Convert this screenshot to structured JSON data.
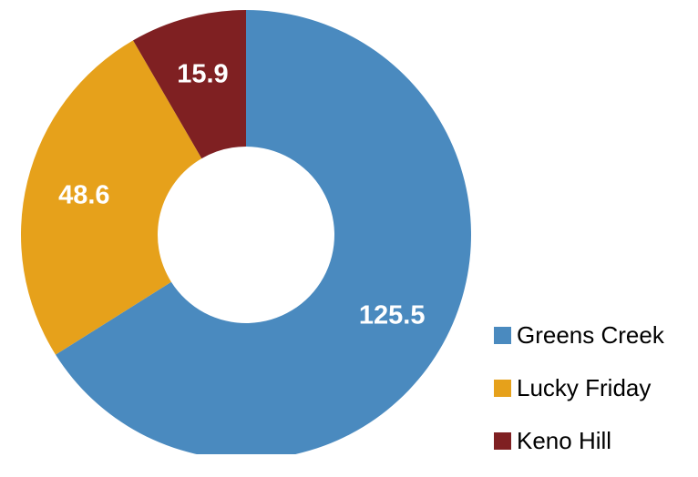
{
  "chart_data": {
    "type": "pie",
    "variant": "donut",
    "title": "",
    "categories": [
      "Greens Creek",
      "Lucky Friday",
      "Keno Hill"
    ],
    "values": [
      125.5,
      48.6,
      15.9
    ],
    "value_labels": [
      "125.5",
      "48.6",
      "15.9"
    ],
    "colors": [
      "#4a8abf",
      "#e6a11b",
      "#7f2022"
    ],
    "legend": {
      "placement": "bottom-right",
      "entries": [
        "Greens Creek",
        "Lucky Friday",
        "Keno Hill"
      ]
    }
  }
}
